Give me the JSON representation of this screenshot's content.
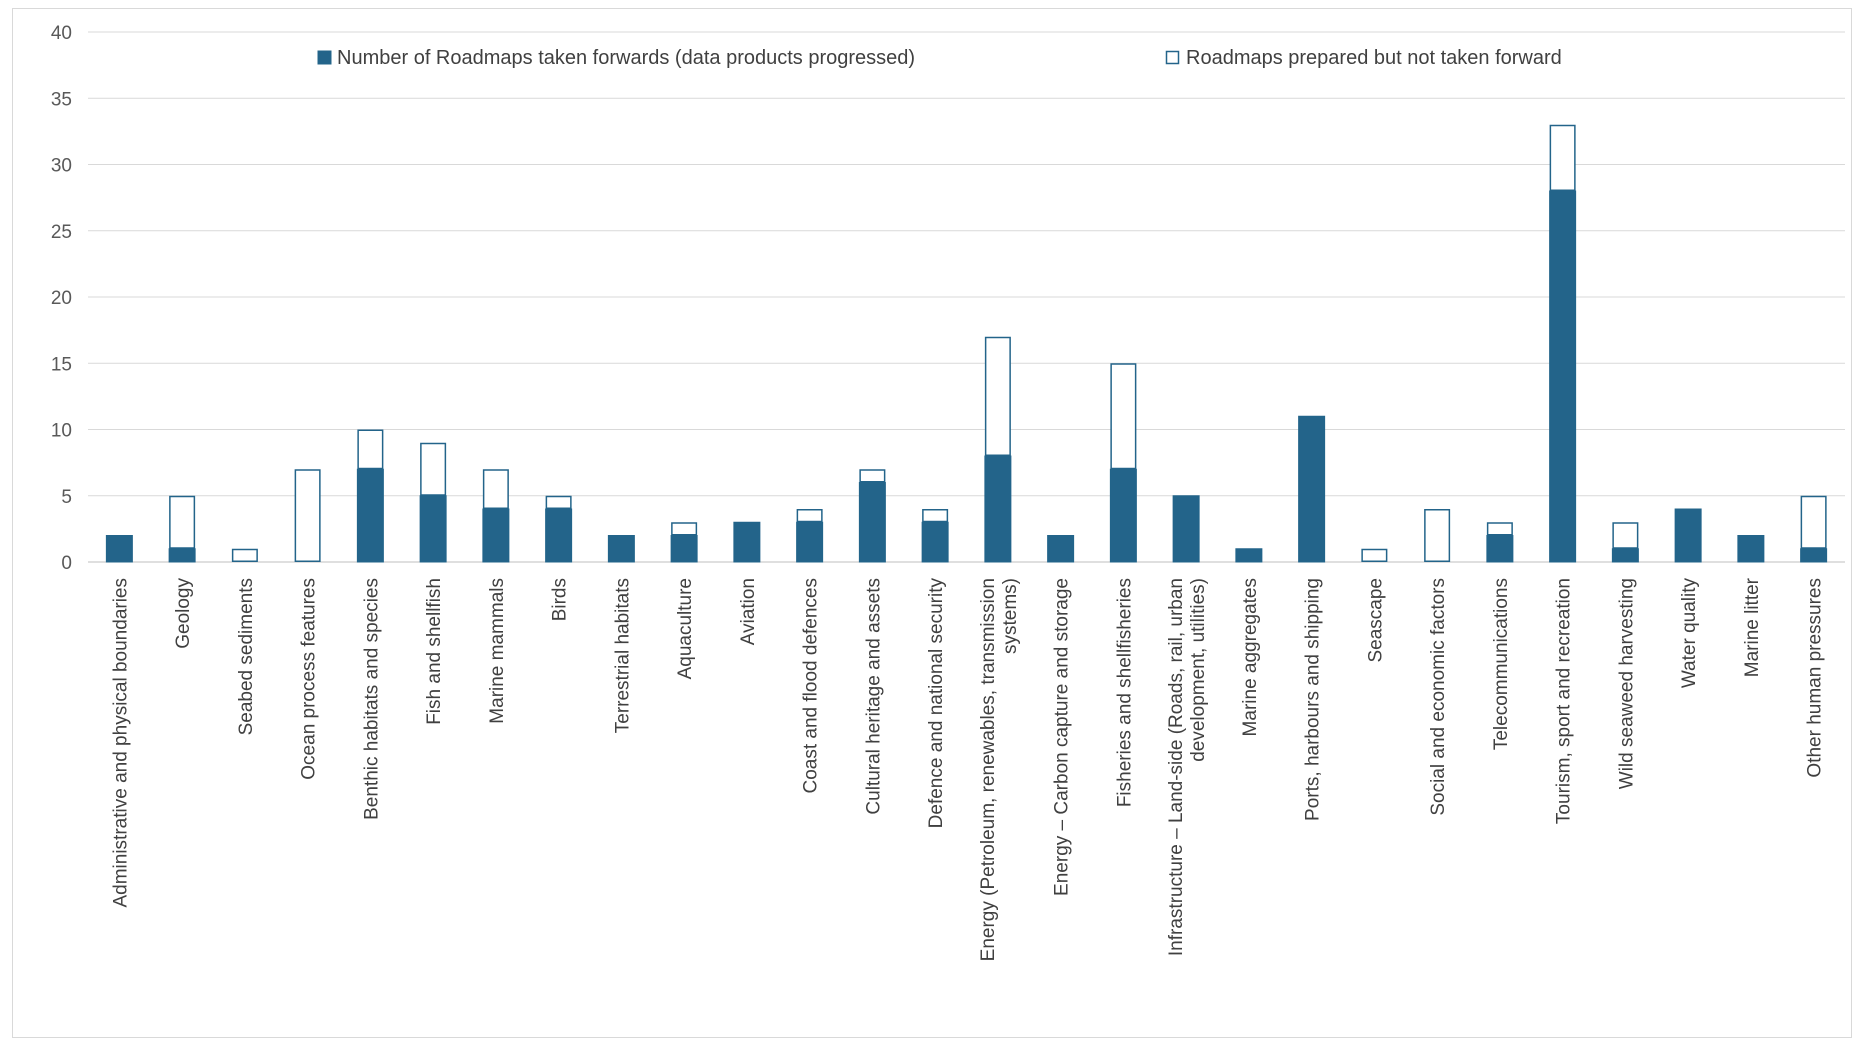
{
  "colors": {
    "filled": "#23648a",
    "grid": "#d9d9d9",
    "axis": "#bfbfbf"
  },
  "chart_data": {
    "type": "bar",
    "stacked": true,
    "ylim": [
      0,
      40
    ],
    "yticks": [
      0,
      5,
      10,
      15,
      20,
      25,
      30,
      35,
      40
    ],
    "grid": true,
    "legend_position": "top",
    "categories": [
      [
        "Administrative and physical boundaries"
      ],
      [
        "Geology"
      ],
      [
        "Seabed sediments"
      ],
      [
        "Ocean process features"
      ],
      [
        "Benthic habitats and species"
      ],
      [
        "Fish and shellfish"
      ],
      [
        "Marine mammals"
      ],
      [
        "Birds"
      ],
      [
        "Terrestrial habitats"
      ],
      [
        "Aquaculture"
      ],
      [
        "Aviation"
      ],
      [
        "Coast and flood defences"
      ],
      [
        "Cultural heritage and assets"
      ],
      [
        "Defence and national security"
      ],
      [
        "Energy (Petroleum, renewables, transmission",
        "systems)"
      ],
      [
        "Energy – Carbon capture and storage"
      ],
      [
        "Fisheries and shellfisheries"
      ],
      [
        "Infrastructure – Land-side (Roads, rail, urban",
        "development, utilities)"
      ],
      [
        "Marine aggregates"
      ],
      [
        "Ports, harbours and shipping"
      ],
      [
        "Seascape"
      ],
      [
        "Social and economic factors"
      ],
      [
        "Telecommunications"
      ],
      [
        "Tourism, sport and recreation"
      ],
      [
        "Wild seaweed harvesting"
      ],
      [
        "Water quality"
      ],
      [
        "Marine litter"
      ],
      [
        "Other human pressures"
      ]
    ],
    "series": [
      {
        "name": "Number of Roadmaps taken forwards (data products progressed)",
        "color": "#23648a",
        "values": [
          2,
          1,
          0,
          0,
          7,
          5,
          4,
          4,
          2,
          2,
          3,
          3,
          6,
          3,
          8,
          2,
          7,
          5,
          1,
          11,
          0,
          0,
          2,
          28,
          1,
          4,
          2,
          1
        ]
      },
      {
        "name": "Roadmaps prepared but not taken forward",
        "color": "#ffffff",
        "values": [
          0,
          4,
          1,
          7,
          3,
          4,
          3,
          1,
          0,
          1,
          0,
          1,
          1,
          1,
          9,
          0,
          8,
          0,
          0,
          0,
          1,
          4,
          1,
          5,
          2,
          0,
          0,
          4
        ]
      }
    ]
  }
}
